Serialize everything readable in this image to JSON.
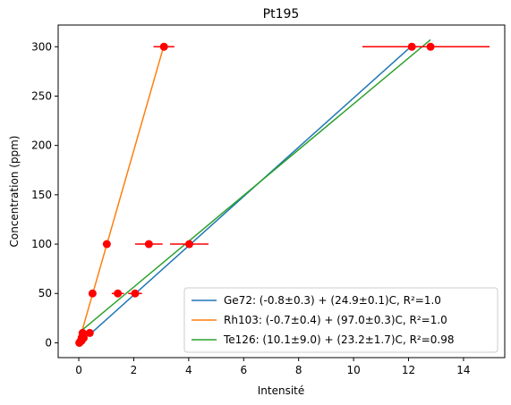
{
  "chart_data": {
    "type": "scatter",
    "title": "Pt195",
    "xlabel": "Intensité",
    "ylabel": "Concentration (ppm)",
    "xlim": [
      -0.75,
      15.5
    ],
    "ylim": [
      -15,
      322
    ],
    "xticks": [
      0,
      2,
      4,
      6,
      8,
      10,
      12,
      14
    ],
    "yticks": [
      0,
      50,
      100,
      150,
      200,
      250,
      300
    ],
    "grid": false,
    "legend_position": "lower-right",
    "points": {
      "color": "#ff0000",
      "data": [
        {
          "x": 0.02,
          "y": 0,
          "xerr": 0.0
        },
        {
          "x": 0.05,
          "y": 1,
          "xerr": 0.0
        },
        {
          "x": 0.1,
          "y": 2,
          "xerr": 0.0
        },
        {
          "x": 0.1,
          "y": 5,
          "xerr": 0.0
        },
        {
          "x": 0.18,
          "y": 5,
          "xerr": 0.0
        },
        {
          "x": 0.14,
          "y": 10,
          "xerr": 0.0
        },
        {
          "x": 0.4,
          "y": 10,
          "xerr": 0.0
        },
        {
          "x": 0.5,
          "y": 50,
          "xerr": 0.0
        },
        {
          "x": 1.42,
          "y": 50,
          "xerr": 0.22
        },
        {
          "x": 2.05,
          "y": 50,
          "xerr": 0.25
        },
        {
          "x": 1.02,
          "y": 100,
          "xerr": 0.0
        },
        {
          "x": 2.55,
          "y": 100,
          "xerr": 0.5
        },
        {
          "x": 4.02,
          "y": 100,
          "xerr": 0.7
        },
        {
          "x": 3.1,
          "y": 300,
          "xerr": 0.38
        },
        {
          "x": 12.12,
          "y": 300,
          "xerr": 1.8
        },
        {
          "x": 12.8,
          "y": 300,
          "xerr": 2.15
        }
      ]
    },
    "series": [
      {
        "name": "Ge72: (-0.8±0.3) + (24.9±0.1)C, R²=1.0",
        "color": "#1f77b4",
        "x": [
          0.46,
          12.08
        ],
        "y": [
          10,
          300
        ]
      },
      {
        "name": "Rh103: (-0.7±0.4) + (97.0±0.3)C, R²=1.0",
        "color": "#ff7f0e",
        "x": [
          0.096,
          3.085
        ],
        "y": [
          10,
          300
        ]
      },
      {
        "name": "Te126: (10.1±9.0) + (23.2±1.7)C, R²=0.98",
        "color": "#2ca02c",
        "x": [
          0.0,
          12.8
        ],
        "y": [
          10.1,
          307.1
        ]
      }
    ]
  }
}
